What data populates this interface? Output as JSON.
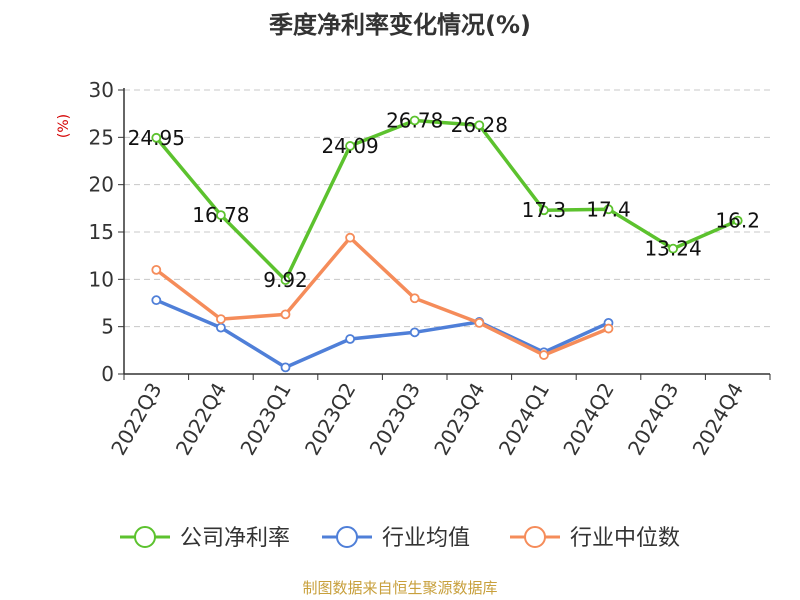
{
  "colors": {
    "company": "#5cc22e",
    "industry_avg": "#4f7fd8",
    "industry_median": "#f58c5a",
    "axis": "#333333",
    "grid": "#c8c8c8",
    "ylabel": "#d40000",
    "source": "#c8a03c"
  },
  "chart_data": {
    "type": "line",
    "title": "季度净利率变化情况(%)",
    "ylabel": "(%)",
    "xlabel": "",
    "ylim": [
      0,
      30
    ],
    "yticks": [
      0,
      5,
      10,
      15,
      20,
      25,
      30
    ],
    "grid": "horizontal-dashed",
    "legend_position": "bottom",
    "categories": [
      "2022Q3",
      "2022Q4",
      "2023Q1",
      "2023Q2",
      "2023Q3",
      "2023Q4",
      "2024Q1",
      "2024Q2",
      "2024Q3",
      "2024Q4"
    ],
    "series": [
      {
        "name": "公司净利率",
        "color_key": "company",
        "values": [
          24.95,
          16.78,
          9.92,
          24.09,
          26.78,
          26.28,
          17.3,
          17.4,
          13.24,
          16.2
        ],
        "data_labels": [
          "24.95",
          "16.78",
          "9.92",
          "24.09",
          "26.78",
          "26.28",
          "17.3",
          "17.4",
          "13.24",
          "16.2"
        ]
      },
      {
        "name": "行业均值",
        "color_key": "industry_avg",
        "values": [
          7.8,
          4.9,
          0.7,
          3.7,
          4.4,
          5.5,
          2.3,
          5.4,
          null,
          null
        ]
      },
      {
        "name": "行业中位数",
        "color_key": "industry_median",
        "values": [
          11.0,
          5.8,
          6.3,
          14.4,
          8.0,
          5.4,
          2.0,
          4.8,
          null,
          null
        ]
      }
    ]
  },
  "footer": {
    "source": "制图数据来自恒生聚源数据库"
  }
}
